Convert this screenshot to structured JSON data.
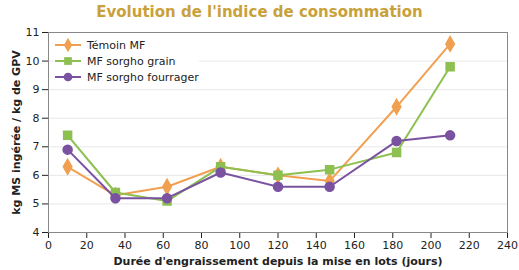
{
  "chart_data": {
    "type": "line",
    "title": "Evolution de l'indice de consommation",
    "x_label": "Durée d'engraissement depuis la mise en lots (jours)",
    "y_label": "kg MS ingérée / kg de GPV",
    "x": [
      10,
      35,
      62,
      90,
      120,
      147,
      182,
      210
    ],
    "series": [
      {
        "name": "Témoin MF",
        "color": "#f0a050",
        "marker": "diamond",
        "values": [
          6.3,
          5.3,
          5.6,
          6.3,
          6.0,
          5.8,
          8.4,
          10.6
        ]
      },
      {
        "name": "MF sorgho grain",
        "color": "#8dc050",
        "marker": "square",
        "values": [
          7.4,
          5.4,
          5.1,
          6.3,
          6.0,
          6.2,
          6.8,
          9.8
        ]
      },
      {
        "name": "MF sorgho fourrager",
        "color": "#7a52a0",
        "marker": "circle",
        "values": [
          6.9,
          5.2,
          5.2,
          6.1,
          5.6,
          5.6,
          7.2,
          7.4
        ]
      }
    ],
    "xlim": [
      0,
      240
    ],
    "xticks": [
      0,
      20,
      40,
      60,
      80,
      100,
      120,
      140,
      160,
      180,
      200,
      220,
      240
    ],
    "ylim": [
      4,
      11
    ],
    "yticks": [
      4,
      5,
      6,
      7,
      8,
      9,
      10,
      11
    ],
    "grid": true,
    "legend": "top-left"
  }
}
